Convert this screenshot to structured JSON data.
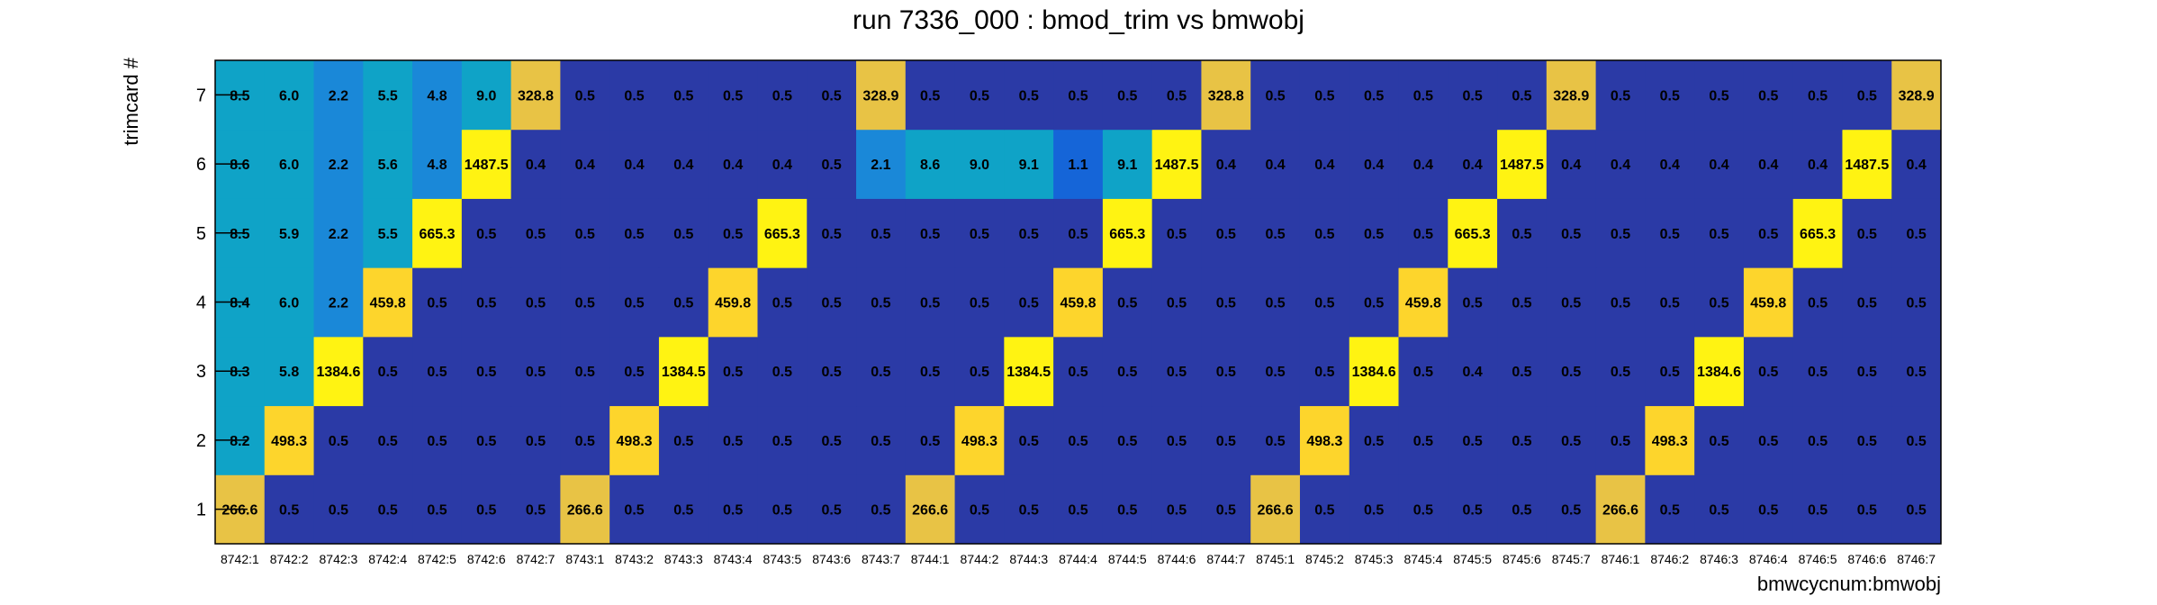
{
  "chart_data": {
    "type": "heatmap",
    "title": "run 7336_000 : bmod_trim vs bmwobj",
    "xlabel": "bmwcycnum:bmwobj",
    "ylabel": "trimcard #",
    "x_categories": [
      "8742:1",
      "8742:2",
      "8742:3",
      "8742:4",
      "8742:5",
      "8742:6",
      "8742:7",
      "8743:1",
      "8743:2",
      "8743:3",
      "8743:4",
      "8743:5",
      "8743:6",
      "8743:7",
      "8744:1",
      "8744:2",
      "8744:3",
      "8744:4",
      "8744:5",
      "8744:6",
      "8744:7",
      "8745:1",
      "8745:2",
      "8745:3",
      "8745:4",
      "8745:5",
      "8745:6",
      "8745:7",
      "8746:1",
      "8746:2",
      "8746:3",
      "8746:4",
      "8746:5",
      "8746:6",
      "8746:7"
    ],
    "y_categories": [
      "1",
      "2",
      "3",
      "4",
      "5",
      "6",
      "7"
    ],
    "values": [
      [
        266.6,
        0.5,
        0.5,
        0.5,
        0.5,
        0.5,
        0.5,
        266.6,
        0.5,
        0.5,
        0.5,
        0.5,
        0.5,
        0.5,
        266.6,
        0.5,
        0.5,
        0.5,
        0.5,
        0.5,
        0.5,
        266.6,
        0.5,
        0.5,
        0.5,
        0.5,
        0.5,
        0.5,
        266.6,
        0.5,
        0.5,
        0.5,
        0.5,
        0.5,
        0.5
      ],
      [
        8.2,
        498.3,
        0.5,
        0.5,
        0.5,
        0.5,
        0.5,
        0.5,
        498.3,
        0.5,
        0.5,
        0.5,
        0.5,
        0.5,
        0.5,
        498.3,
        0.5,
        0.5,
        0.5,
        0.5,
        0.5,
        0.5,
        498.3,
        0.5,
        0.5,
        0.5,
        0.5,
        0.5,
        0.5,
        498.3,
        0.5,
        0.5,
        0.5,
        0.5,
        0.5
      ],
      [
        8.3,
        5.8,
        1384.6,
        0.5,
        0.5,
        0.5,
        0.5,
        0.5,
        0.5,
        1384.5,
        0.5,
        0.5,
        0.5,
        0.5,
        0.5,
        0.5,
        1384.5,
        0.5,
        0.5,
        0.5,
        0.5,
        0.5,
        0.5,
        1384.6,
        0.5,
        0.4,
        0.5,
        0.5,
        0.5,
        0.5,
        1384.6,
        0.5,
        0.5,
        0.5,
        0.5
      ],
      [
        8.4,
        6.0,
        2.2,
        459.8,
        0.5,
        0.5,
        0.5,
        0.5,
        0.5,
        0.5,
        459.8,
        0.5,
        0.5,
        0.5,
        0.5,
        0.5,
        0.5,
        459.8,
        0.5,
        0.5,
        0.5,
        0.5,
        0.5,
        0.5,
        459.8,
        0.5,
        0.5,
        0.5,
        0.5,
        0.5,
        0.5,
        459.8,
        0.5,
        0.5,
        0.5
      ],
      [
        8.5,
        5.9,
        2.2,
        5.5,
        665.3,
        0.5,
        0.5,
        0.5,
        0.5,
        0.5,
        0.5,
        665.3,
        0.5,
        0.5,
        0.5,
        0.5,
        0.5,
        0.5,
        665.3,
        0.5,
        0.5,
        0.5,
        0.5,
        0.5,
        0.5,
        665.3,
        0.5,
        0.5,
        0.5,
        0.5,
        0.5,
        0.5,
        665.3,
        0.5,
        0.5
      ],
      [
        8.6,
        6.0,
        2.2,
        5.6,
        4.8,
        1487.5,
        0.4,
        0.4,
        0.4,
        0.4,
        0.4,
        0.4,
        0.5,
        2.1,
        8.6,
        9.0,
        9.1,
        1.1,
        9.1,
        1487.5,
        0.4,
        0.4,
        0.4,
        0.4,
        0.4,
        0.4,
        1487.5,
        0.4,
        0.4,
        0.4,
        0.4,
        0.4,
        0.4,
        1487.5,
        0.4
      ],
      [
        8.5,
        6.0,
        2.2,
        5.5,
        4.8,
        9.0,
        328.8,
        0.5,
        0.5,
        0.5,
        0.5,
        0.5,
        0.5,
        328.9,
        0.5,
        0.5,
        0.5,
        0.5,
        0.5,
        0.5,
        328.8,
        0.5,
        0.5,
        0.5,
        0.5,
        0.5,
        0.5,
        328.9,
        0.5,
        0.5,
        0.5,
        0.5,
        0.5,
        0.5,
        328.9
      ]
    ],
    "color_scale": [
      "#2b3aa6",
      "#1565d8",
      "#1a88d8",
      "#0fa3c7",
      "#e8c345",
      "#fdd52c",
      "#fff312"
    ],
    "grid": false,
    "legend": "none"
  }
}
